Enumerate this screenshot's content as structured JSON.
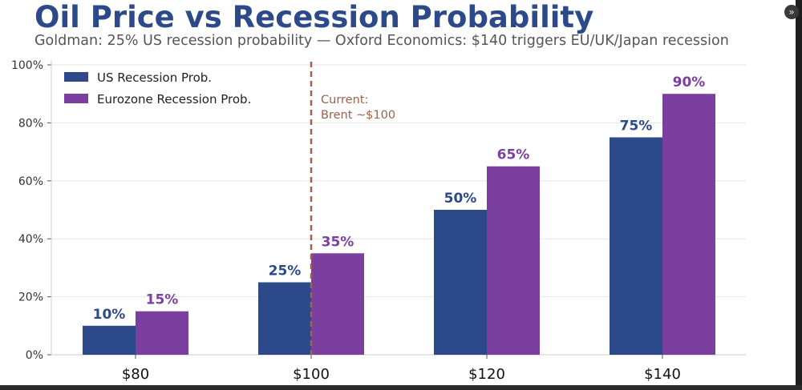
{
  "header": {
    "title": "Oil Price vs Recession Probability",
    "subtitle": "Goldman: 25% US recession probability — Oxford Economics: $140 triggers EU/UK/Japan recession"
  },
  "window": {
    "corner_icon": "double-chevron-right-icon",
    "corner_glyph": "»"
  },
  "chart_data": {
    "type": "bar",
    "categories": [
      "$80",
      "$100",
      "$120",
      "$140"
    ],
    "series": [
      {
        "name": "US Recession Prob.",
        "values": [
          10,
          25,
          50,
          75
        ],
        "labels": [
          "10%",
          "25%",
          "50%",
          "75%"
        ],
        "color": "#2c4a8a"
      },
      {
        "name": "Eurozone Recession Prob.",
        "values": [
          15,
          35,
          65,
          90
        ],
        "labels": [
          "15%",
          "35%",
          "65%",
          "90%"
        ],
        "color": "#7b3fa0"
      }
    ],
    "ylim": [
      0,
      100
    ],
    "yticks": [
      0,
      20,
      40,
      60,
      80,
      100
    ],
    "ytick_labels": [
      "0%",
      "20%",
      "40%",
      "60%",
      "80%",
      "100%"
    ],
    "grid": true,
    "legend_position": "top-left",
    "annotation": {
      "lines": [
        "Current:",
        "Brent ~$100"
      ],
      "at_category": "$100",
      "color": "#a0604a"
    },
    "xlabel": "",
    "ylabel": ""
  }
}
